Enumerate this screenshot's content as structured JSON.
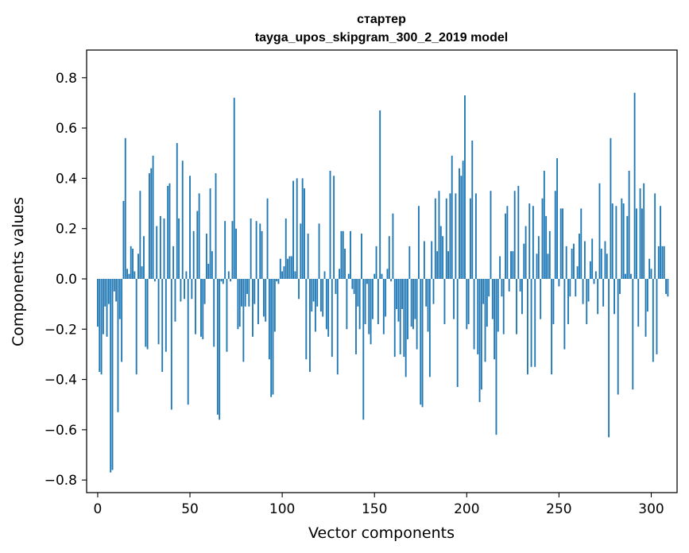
{
  "chart_data": {
    "type": "bar",
    "title_line1": "стартер",
    "title_line2": "tayga_upos_skipgram_300_2_2019 model",
    "xlabel": "Vector components",
    "ylabel": "Components values",
    "xlim": [
      -6,
      314
    ],
    "ylim": [
      -0.85,
      0.91
    ],
    "xticks": [
      0,
      50,
      100,
      150,
      200,
      250,
      300
    ],
    "xtick_labels": [
      "0",
      "50",
      "100",
      "150",
      "200",
      "250",
      "300"
    ],
    "yticks": [
      -0.8,
      -0.6,
      -0.4,
      -0.2,
      0.0,
      0.2,
      0.4,
      0.6,
      0.8
    ],
    "ytick_labels": [
      "−0.8",
      "−0.6",
      "−0.4",
      "−0.2",
      "0.0",
      "0.2",
      "0.4",
      "0.6",
      "0.8"
    ],
    "bar_color": "#1f77b4",
    "values": [
      -0.19,
      -0.37,
      -0.38,
      -0.22,
      -0.11,
      -0.23,
      -0.1,
      -0.77,
      -0.76,
      -0.05,
      -0.09,
      -0.53,
      -0.16,
      -0.33,
      0.31,
      0.56,
      0.04,
      0.02,
      0.13,
      0.12,
      0.03,
      -0.38,
      0.1,
      0.35,
      0.05,
      0.17,
      -0.27,
      -0.28,
      0.42,
      0.44,
      0.49,
      -0.01,
      0.21,
      -0.26,
      0.25,
      -0.37,
      0.24,
      -0.29,
      0.37,
      0.38,
      -0.52,
      0.13,
      -0.17,
      0.54,
      0.24,
      -0.09,
      0.47,
      -0.08,
      0.03,
      -0.5,
      0.41,
      -0.08,
      0.19,
      -0.22,
      0.27,
      0.34,
      -0.23,
      -0.24,
      -0.1,
      0.18,
      0.06,
      0.36,
      0.11,
      -0.27,
      0.42,
      -0.54,
      -0.56,
      -0.01,
      -0.02,
      0.23,
      -0.29,
      0.03,
      -0.01,
      0.23,
      0.72,
      0.2,
      -0.2,
      -0.19,
      -0.11,
      -0.33,
      -0.11,
      -0.06,
      -0.11,
      0.24,
      -0.23,
      -0.1,
      0.23,
      -0.18,
      0.22,
      0.19,
      -0.15,
      -0.17,
      0.32,
      -0.32,
      -0.47,
      -0.46,
      -0.21,
      -0.01,
      -0.02,
      0.08,
      0.03,
      0.05,
      0.24,
      0.08,
      0.09,
      0.09,
      0.39,
      0.03,
      0.4,
      -0.08,
      0.22,
      0.4,
      0.36,
      -0.32,
      0.18,
      -0.37,
      -0.13,
      -0.09,
      -0.21,
      -0.11,
      0.22,
      -0.13,
      -0.15,
      0.03,
      -0.2,
      -0.23,
      0.43,
      -0.31,
      0.41,
      -0.06,
      -0.38,
      0.04,
      0.19,
      0.19,
      0.12,
      -0.2,
      0.02,
      0.19,
      -0.04,
      -0.06,
      -0.3,
      -0.11,
      -0.2,
      0.18,
      -0.56,
      -0.18,
      -0.02,
      -0.22,
      -0.26,
      -0.16,
      0.02,
      0.13,
      -0.18,
      0.67,
      0.02,
      -0.22,
      -0.15,
      0.04,
      0.17,
      -0.01,
      0.26,
      -0.31,
      -0.12,
      -0.17,
      -0.3,
      -0.12,
      -0.31,
      -0.39,
      -0.24,
      0.13,
      -0.19,
      -0.2,
      -0.16,
      -0.28,
      0.29,
      -0.5,
      -0.51,
      0.15,
      -0.11,
      -0.21,
      -0.39,
      0.15,
      -0.1,
      0.32,
      0.11,
      0.35,
      0.21,
      0.17,
      -0.18,
      0.32,
      0.11,
      0.34,
      0.49,
      -0.16,
      0.34,
      -0.43,
      0.44,
      0.41,
      0.47,
      0.73,
      -0.2,
      -0.18,
      0.32,
      0.55,
      -0.28,
      0.34,
      -0.3,
      -0.49,
      -0.44,
      -0.1,
      -0.33,
      -0.19,
      -0.07,
      0.35,
      -0.16,
      -0.32,
      -0.62,
      -0.21,
      0.09,
      -0.07,
      -0.22,
      0.26,
      0.29,
      -0.05,
      0.11,
      0.11,
      0.35,
      -0.22,
      0.37,
      -0.05,
      -0.14,
      0.14,
      0.21,
      -0.38,
      0.3,
      -0.35,
      0.29,
      -0.35,
      0.1,
      0.17,
      -0.16,
      0.32,
      0.43,
      0.25,
      0.1,
      0.19,
      -0.38,
      -0.18,
      0.35,
      0.48,
      -0.03,
      0.28,
      0.28,
      -0.28,
      0.13,
      -0.18,
      -0.07,
      0.12,
      0.14,
      -0.07,
      0.05,
      0.18,
      0.28,
      -0.1,
      0.15,
      -0.18,
      -0.09,
      0.07,
      0.16,
      -0.02,
      0.03,
      -0.14,
      0.38,
      0.12,
      -0.11,
      0.15,
      0.1,
      -0.63,
      0.56,
      0.3,
      -0.14,
      0.29,
      -0.46,
      -0.06,
      0.32,
      0.3,
      0.02,
      0.25,
      0.43,
      0.02,
      -0.44,
      0.74,
      0.28,
      -0.19,
      0.36,
      0.28,
      0.38,
      -0.23,
      -0.13,
      0.08,
      0.04,
      -0.33,
      0.34,
      -0.3,
      0.13,
      0.29,
      0.13,
      0.13,
      -0.06,
      -0.07
    ]
  }
}
